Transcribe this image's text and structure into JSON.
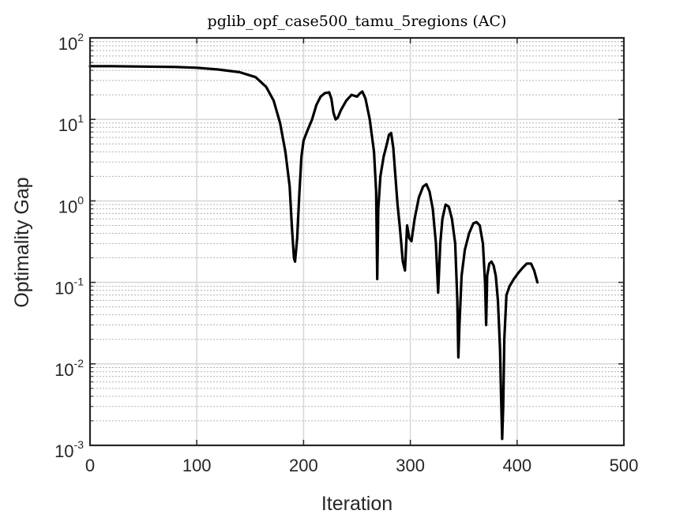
{
  "chart_data": {
    "type": "line",
    "title": "pglib_opf_case500_tamu_5regions (AC)",
    "xlabel": "Iteration",
    "ylabel": "Optimality Gap",
    "xlim": [
      0,
      500
    ],
    "ylim": [
      0.001,
      100
    ],
    "yscale": "log",
    "grid": "on (major solid, minor dotted)",
    "x_ticks": [
      {
        "value": 0,
        "label": "0"
      },
      {
        "value": 100,
        "label": "100"
      },
      {
        "value": 200,
        "label": "200"
      },
      {
        "value": 300,
        "label": "300"
      },
      {
        "value": 400,
        "label": "400"
      },
      {
        "value": 500,
        "label": "500"
      }
    ],
    "y_ticks": [
      {
        "value": 0.001,
        "base": "10",
        "exp": "-3"
      },
      {
        "value": 0.01,
        "base": "10",
        "exp": "-2"
      },
      {
        "value": 0.1,
        "base": "10",
        "exp": "-1"
      },
      {
        "value": 1,
        "base": "10",
        "exp": "0"
      },
      {
        "value": 10,
        "base": "10",
        "exp": "1"
      },
      {
        "value": 100,
        "base": "10",
        "exp": "2"
      }
    ],
    "line_color": "#000000",
    "series": [
      {
        "x": [
          0,
          20,
          50,
          80,
          100,
          120,
          140,
          155,
          165,
          172,
          178,
          183,
          187,
          189,
          191,
          192,
          194,
          196,
          198,
          200,
          204,
          208,
          212,
          216,
          220,
          224,
          226,
          228,
          230,
          232,
          235,
          240,
          245,
          250,
          253,
          255,
          258,
          262,
          266,
          268,
          269,
          270,
          272,
          275,
          278,
          280,
          282,
          284,
          286,
          288,
          290,
          293,
          295,
          297,
          299,
          301,
          304,
          308,
          312,
          315,
          318,
          321,
          324,
          326,
          328,
          330,
          333,
          336,
          339,
          342,
          344,
          345,
          346,
          348,
          351,
          355,
          359,
          362,
          365,
          368,
          370,
          371,
          372,
          374,
          376,
          378,
          380,
          382,
          384,
          385,
          386,
          387,
          388,
          390,
          393,
          397,
          401,
          405,
          409,
          413,
          416,
          419
        ],
        "y": [
          45,
          45,
          44.5,
          44,
          43,
          41,
          38,
          33,
          25,
          17,
          9,
          4,
          1.5,
          0.5,
          0.2,
          0.18,
          0.35,
          1.2,
          3.5,
          5.5,
          7.5,
          10,
          15,
          19,
          21,
          21.5,
          18,
          12,
          10,
          10.5,
          13,
          17,
          20,
          19,
          21,
          22,
          18,
          10,
          4,
          1.3,
          0.11,
          0.8,
          2,
          3.5,
          5,
          6.5,
          6.8,
          4.5,
          2,
          0.9,
          0.5,
          0.18,
          0.14,
          0.5,
          0.35,
          0.32,
          0.6,
          1.1,
          1.5,
          1.6,
          1.3,
          0.8,
          0.3,
          0.075,
          0.3,
          0.6,
          0.9,
          0.85,
          0.6,
          0.3,
          0.06,
          0.012,
          0.03,
          0.12,
          0.25,
          0.4,
          0.53,
          0.55,
          0.5,
          0.3,
          0.1,
          0.03,
          0.12,
          0.17,
          0.18,
          0.16,
          0.12,
          0.06,
          0.015,
          0.004,
          0.0012,
          0.003,
          0.02,
          0.07,
          0.09,
          0.11,
          0.13,
          0.15,
          0.17,
          0.17,
          0.14,
          0.1
        ]
      }
    ]
  }
}
